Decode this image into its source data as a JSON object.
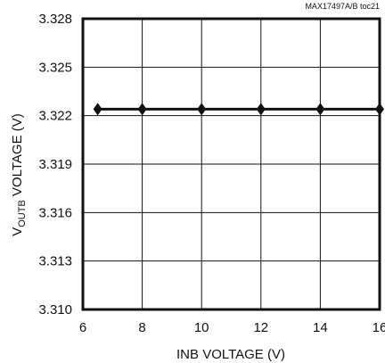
{
  "figure_id": "MAX17497A/B toc21",
  "chart_data": {
    "type": "line",
    "xlabel": "INB VOLTAGE (V)",
    "ylabel": {
      "prefix": "V",
      "subscript": "OUTB",
      "suffix": " VOLTAGE (V)"
    },
    "xlim": [
      6,
      16
    ],
    "ylim": [
      3.31,
      3.328
    ],
    "x_ticks": [
      "6",
      "8",
      "10",
      "12",
      "14",
      "16"
    ],
    "y_ticks": [
      "3.310",
      "3.313",
      "3.316",
      "3.319",
      "3.322",
      "3.325",
      "3.328"
    ],
    "grid": true,
    "series": [
      {
        "marker": "diamond",
        "color": "#111111",
        "x": [
          6.5,
          8,
          10,
          12,
          14,
          16
        ],
        "y": [
          3.3224,
          3.3224,
          3.3224,
          3.3224,
          3.3224,
          3.3224
        ]
      }
    ]
  }
}
